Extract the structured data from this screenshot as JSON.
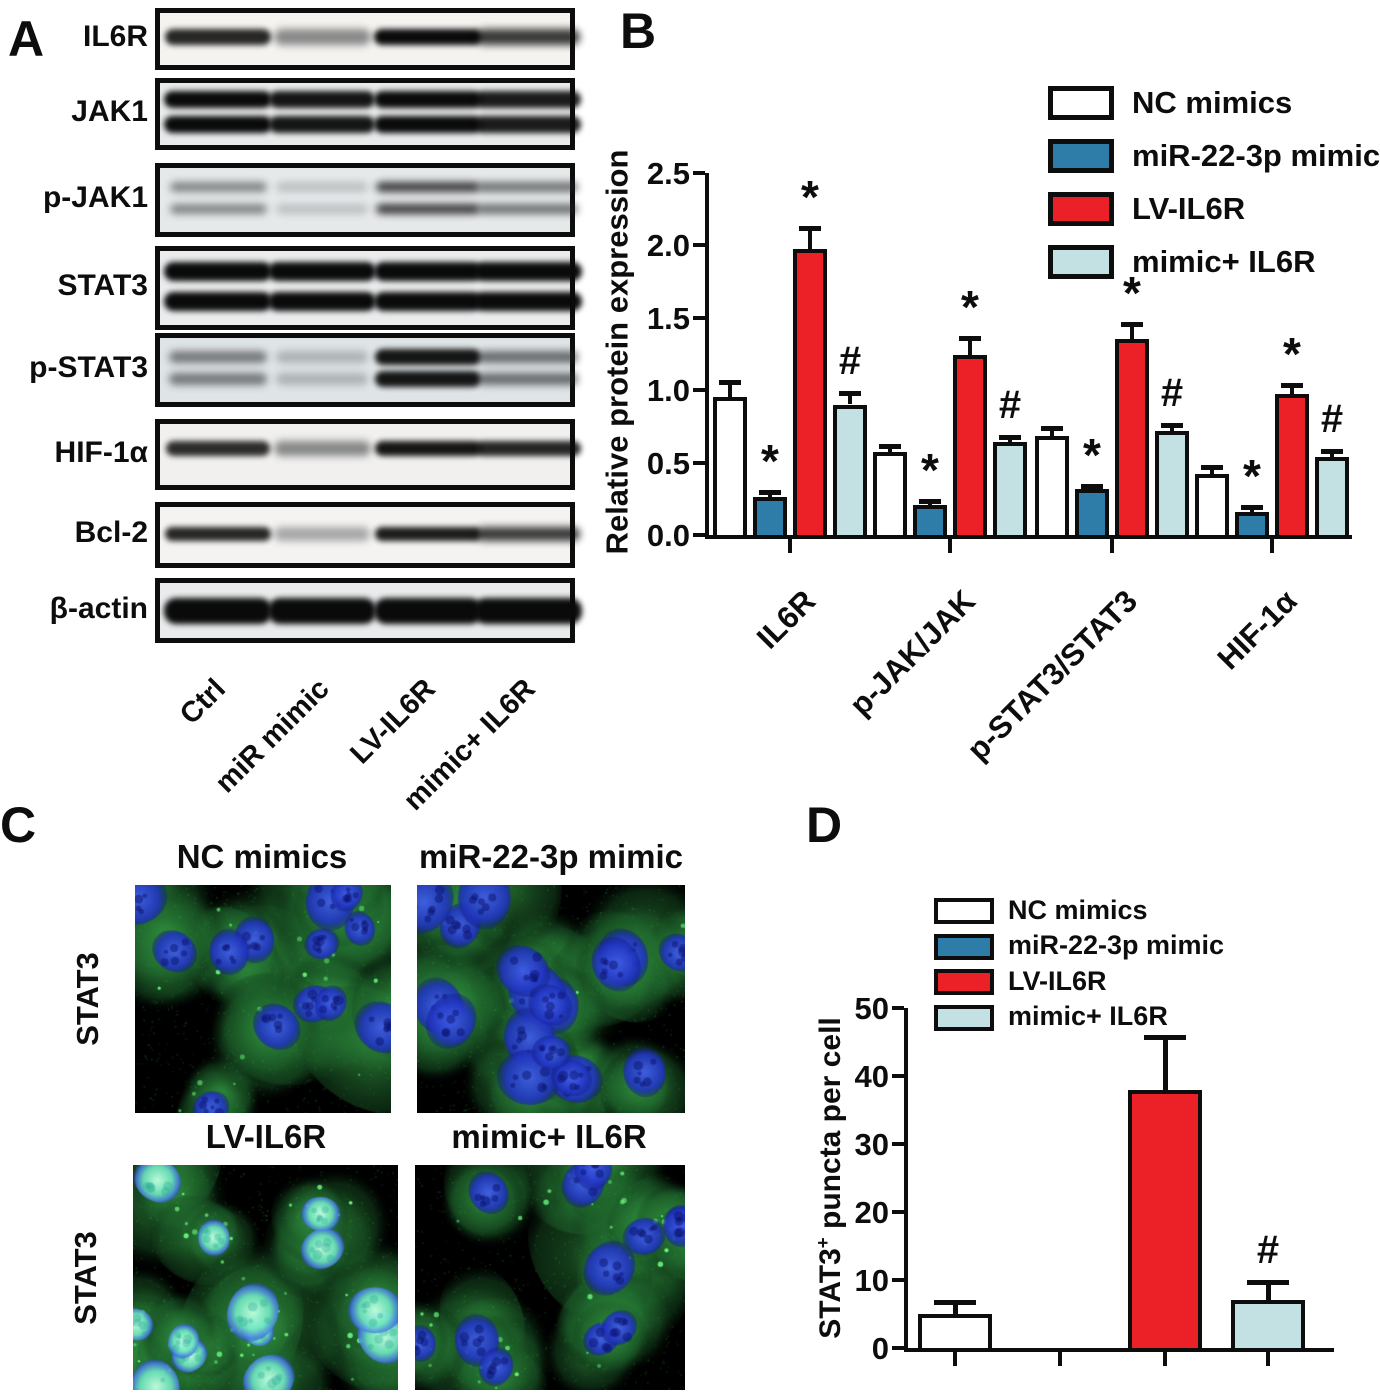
{
  "panels": {
    "A": {
      "label": "A",
      "lane_labels": [
        "Ctrl",
        "miR mimic",
        "LV-IL6R",
        "mimic+ IL6R"
      ],
      "blots": [
        {
          "protein": "IL6R",
          "bands": 1,
          "lane_intensity": [
            0.88,
            0.5,
            1.0,
            0.8
          ],
          "bg": "#f4f3f0"
        },
        {
          "protein": "JAK1",
          "bands": 2,
          "lane_intensity": [
            1.0,
            0.95,
            1.0,
            0.92
          ],
          "bg": "#e8eaeb"
        },
        {
          "protein": "p-JAK1",
          "bands": 2,
          "lane_intensity": [
            0.5,
            0.24,
            0.78,
            0.6
          ],
          "bg": "#e6e9ea"
        },
        {
          "protein": "STAT3",
          "bands": 2,
          "lane_intensity": [
            1.0,
            1.0,
            1.0,
            1.0
          ],
          "bg": "#eaecee"
        },
        {
          "protein": "p-STAT3",
          "bands": 2,
          "lane_intensity": [
            0.55,
            0.3,
            0.95,
            0.62
          ],
          "bg": "#dfe4e6"
        },
        {
          "protein": "HIF-1α",
          "bands": 1,
          "lane_intensity": [
            0.85,
            0.5,
            0.95,
            0.88
          ],
          "bg": "#f1f0ee"
        },
        {
          "protein": "Bcl-2",
          "bands": 1,
          "lane_intensity": [
            0.88,
            0.42,
            0.92,
            0.8
          ],
          "bg": "#f4f3f1"
        },
        {
          "protein": "β-actin",
          "bands": 1,
          "lane_intensity": [
            1.0,
            1.0,
            1.0,
            1.0
          ],
          "bg": "#e9ebec"
        }
      ]
    },
    "B": {
      "label": "B"
    },
    "C": {
      "label": "C",
      "side_label": "STAT3",
      "images": [
        {
          "title": "NC mimics",
          "nuclei": "blue",
          "cells": 13,
          "puncta": 30,
          "seed": 7
        },
        {
          "title": "miR-22-3p mimic",
          "nuclei": "blue",
          "cells": 18,
          "puncta": 10,
          "seed": 11
        },
        {
          "title": "LV-IL6R",
          "nuclei": "cyan",
          "cells": 13,
          "puncta": 70,
          "seed": 23
        },
        {
          "title": "mimic+ IL6R",
          "nuclei": "blue",
          "cells": 12,
          "puncta": 55,
          "seed": 5
        }
      ]
    },
    "D": {
      "label": "D"
    }
  },
  "colors": {
    "nc_mimics": "#ffffff",
    "mir_mimic": "#2e7ca8",
    "lv_il6r": "#ec2027",
    "mimic_il6r": "#c3e0e3",
    "outline": "#0d0d0d"
  },
  "chart_data": [
    {
      "panel": "B",
      "type": "bar",
      "title": "",
      "ylabel": "Relative protein expression",
      "ylim": [
        0.0,
        2.5
      ],
      "yticks": [
        "0.0",
        "0.5",
        "1.0",
        "1.5",
        "2.0",
        "2.5"
      ],
      "categories": [
        "IL6R",
        "p-JAK/JAK",
        "p-STAT3/STAT3",
        "HIF-1α"
      ],
      "legend_position": "top-right",
      "grid": false,
      "series": [
        {
          "name": "NC mimics",
          "color": "#ffffff",
          "values": [
            0.95,
            0.57,
            0.68,
            0.42
          ],
          "errors": [
            0.12,
            0.06,
            0.07,
            0.06
          ],
          "markers": [
            "",
            "",
            "",
            ""
          ]
        },
        {
          "name": "miR-22-3p mimic",
          "color": "#2e7ca8",
          "values": [
            0.26,
            0.21,
            0.32,
            0.16
          ],
          "errors": [
            0.05,
            0.04,
            0.03,
            0.05
          ],
          "markers": [
            "*",
            "*",
            "*",
            "*"
          ]
        },
        {
          "name": "LV-IL6R",
          "color": "#ec2027",
          "values": [
            1.97,
            1.24,
            1.35,
            0.97
          ],
          "errors": [
            0.16,
            0.13,
            0.12,
            0.08
          ],
          "markers": [
            "*",
            "*",
            "*",
            "*"
          ]
        },
        {
          "name": "mimic+ IL6R",
          "color": "#c3e0e3",
          "values": [
            0.9,
            0.64,
            0.72,
            0.54
          ],
          "errors": [
            0.09,
            0.05,
            0.05,
            0.05
          ],
          "markers": [
            "#",
            "#",
            "#",
            "#"
          ]
        }
      ]
    },
    {
      "panel": "D",
      "type": "bar",
      "title": "",
      "ylabel": "STAT3+ puncta per cell",
      "ylabel_pre": "STAT3",
      "ylabel_sup": "+",
      "ylabel_post": " puncta per cell",
      "ylim": [
        0,
        50
      ],
      "yticks": [
        "0",
        "10",
        "20",
        "30",
        "40",
        "50"
      ],
      "categories": [
        "NC mimics",
        "miR-22-3p mimic",
        "LV-IL6R",
        "mimic+ IL6R"
      ],
      "legend_position": "top",
      "grid": false,
      "values": [
        5,
        0,
        38,
        7
      ],
      "errors": [
        2,
        0,
        8,
        3
      ],
      "markers": [
        "",
        "",
        "",
        "#"
      ],
      "bar_colors": [
        "#ffffff",
        "#2e7ca8",
        "#ec2027",
        "#c3e0e3"
      ]
    }
  ]
}
